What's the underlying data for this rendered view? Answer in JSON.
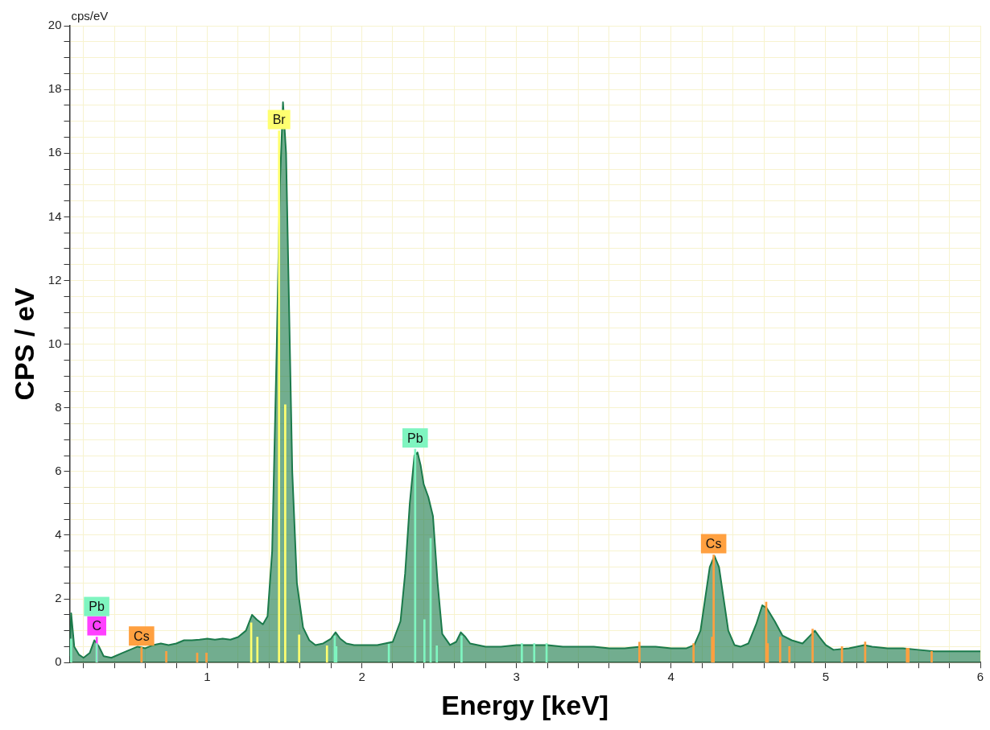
{
  "chart_data": {
    "type": "area",
    "xlabel": "Energy [keV]",
    "ylabel": "CPS / eV",
    "annotations": [
      "cps/eV"
    ],
    "grid": true,
    "xlim": [
      0.11,
      6
    ],
    "xticks": [
      {
        "value": 0.2,
        "label": null
      },
      {
        "value": 0.4,
        "label": null
      },
      {
        "value": 0.6,
        "label": null
      },
      {
        "value": 0.8,
        "label": null
      },
      1,
      {
        "value": 1.2,
        "label": null
      },
      {
        "value": 1.4,
        "label": null
      },
      {
        "value": 1.6,
        "label": null
      },
      {
        "value": 1.8,
        "label": null
      },
      2,
      {
        "value": 2.2,
        "label": null
      },
      {
        "value": 2.4,
        "label": null
      },
      {
        "value": 2.6,
        "label": null
      },
      {
        "value": 2.8,
        "label": null
      },
      3,
      {
        "value": 3.2,
        "label": null
      },
      {
        "value": 3.4,
        "label": null
      },
      {
        "value": 3.6,
        "label": null
      },
      {
        "value": 3.8,
        "label": null
      },
      4,
      {
        "value": 4.2,
        "label": null
      },
      {
        "value": 4.4,
        "label": null
      },
      {
        "value": 4.6,
        "label": null
      },
      {
        "value": 4.8,
        "label": null
      },
      5,
      {
        "value": 5.2,
        "label": null
      },
      {
        "value": 5.4,
        "label": null
      },
      {
        "value": 5.6,
        "label": null
      },
      {
        "value": 5.8,
        "label": null
      },
      6
    ],
    "ylim": [
      0,
      20
    ],
    "yticks": [
      0,
      {
        "value": 0.5,
        "label": null
      },
      {
        "value": 1,
        "label": null
      },
      {
        "value": 1.5,
        "label": null
      },
      2,
      {
        "value": 2.5,
        "label": null
      },
      {
        "value": 3,
        "label": null
      },
      {
        "value": 3.5,
        "label": null
      },
      4,
      {
        "value": 4.5,
        "label": null
      },
      {
        "value": 5,
        "label": null
      },
      {
        "value": 5.5,
        "label": null
      },
      6,
      {
        "value": 6.5,
        "label": null
      },
      {
        "value": 7,
        "label": null
      },
      {
        "value": 7.5,
        "label": null
      },
      8,
      {
        "value": 8.5,
        "label": null
      },
      {
        "value": 9,
        "label": null
      },
      {
        "value": 9.5,
        "label": null
      },
      10,
      {
        "value": 10.5,
        "label": null
      },
      {
        "value": 11,
        "label": null
      },
      {
        "value": 11.5,
        "label": null
      },
      12,
      {
        "value": 12.5,
        "label": null
      },
      {
        "value": 13,
        "label": null
      },
      {
        "value": 13.5,
        "label": null
      },
      14,
      {
        "value": 14.5,
        "label": null
      },
      {
        "value": 15,
        "label": null
      },
      {
        "value": 15.5,
        "label": null
      },
      16,
      {
        "value": 16.5,
        "label": null
      },
      {
        "value": 17,
        "label": null
      },
      {
        "value": 17.5,
        "label": null
      },
      18,
      {
        "value": 18.5,
        "label": null
      },
      {
        "value": 19,
        "label": null
      },
      {
        "value": 19.5,
        "label": null
      },
      20
    ],
    "series": [
      {
        "color": "#1b7a4b",
        "x": [
          0.11,
          0.12,
          0.14,
          0.17,
          0.2,
          0.24,
          0.27,
          0.3,
          0.33,
          0.38,
          0.45,
          0.5,
          0.55,
          0.6,
          0.65,
          0.7,
          0.75,
          0.8,
          0.85,
          0.9,
          0.95,
          1.0,
          1.05,
          1.1,
          1.15,
          1.2,
          1.25,
          1.29,
          1.32,
          1.36,
          1.39,
          1.42,
          1.45,
          1.47,
          1.49,
          1.51,
          1.53,
          1.55,
          1.58,
          1.62,
          1.66,
          1.7,
          1.75,
          1.8,
          1.83,
          1.86,
          1.9,
          1.95,
          2.0,
          2.05,
          2.1,
          2.15,
          2.2,
          2.25,
          2.28,
          2.31,
          2.34,
          2.36,
          2.38,
          2.4,
          2.43,
          2.46,
          2.49,
          2.52,
          2.57,
          2.61,
          2.64,
          2.67,
          2.7,
          2.8,
          2.9,
          3.0,
          3.1,
          3.2,
          3.3,
          3.4,
          3.5,
          3.6,
          3.7,
          3.8,
          3.9,
          4.0,
          4.1,
          4.15,
          4.19,
          4.22,
          4.25,
          4.28,
          4.31,
          4.34,
          4.37,
          4.41,
          4.45,
          4.5,
          4.55,
          4.59,
          4.62,
          4.67,
          4.72,
          4.78,
          4.85,
          4.9,
          4.93,
          4.96,
          5.0,
          5.05,
          5.15,
          5.25,
          5.3,
          5.4,
          5.5,
          5.6,
          5.7,
          5.8,
          5.9,
          6.0
        ],
        "values": [
          0.2,
          1.55,
          0.5,
          0.25,
          0.15,
          0.3,
          0.7,
          0.5,
          0.2,
          0.15,
          0.3,
          0.4,
          0.5,
          0.45,
          0.55,
          0.6,
          0.55,
          0.6,
          0.7,
          0.7,
          0.72,
          0.75,
          0.72,
          0.75,
          0.72,
          0.8,
          1.0,
          1.5,
          1.35,
          1.2,
          1.45,
          3.5,
          10,
          15,
          17.6,
          16,
          11,
          6,
          2.5,
          1.1,
          0.7,
          0.55,
          0.6,
          0.75,
          0.95,
          0.75,
          0.6,
          0.55,
          0.55,
          0.55,
          0.55,
          0.6,
          0.65,
          1.3,
          2.8,
          5,
          6.5,
          6.6,
          6.2,
          5.6,
          5.2,
          4.6,
          2.5,
          0.9,
          0.55,
          0.65,
          0.95,
          0.8,
          0.6,
          0.5,
          0.5,
          0.55,
          0.55,
          0.55,
          0.5,
          0.5,
          0.5,
          0.45,
          0.45,
          0.5,
          0.5,
          0.45,
          0.45,
          0.55,
          1.0,
          2.0,
          3.0,
          3.35,
          3.0,
          2.0,
          1.0,
          0.55,
          0.5,
          0.6,
          1.2,
          1.8,
          1.7,
          1.3,
          0.85,
          0.7,
          0.6,
          0.85,
          1.0,
          0.8,
          0.55,
          0.4,
          0.45,
          0.55,
          0.5,
          0.45,
          0.45,
          0.4,
          0.35,
          0.35,
          0.35,
          0.35
        ]
      },
      {
        "type": "bar",
        "color": "#ffff70",
        "x": [
          1.3,
          1.34,
          1.48,
          1.52,
          1.61,
          1.79
        ],
        "values": [
          1.25,
          0.8,
          16.7,
          8.1,
          0.87,
          0.53
        ],
        "value_labels": [
          null,
          null,
          "Br",
          null,
          null,
          null
        ]
      },
      {
        "type": "bar",
        "color": "#7ff5c0",
        "x": [
          0.125,
          0.29,
          1.83,
          1.84,
          2.18,
          2.35,
          2.41,
          2.45,
          2.49,
          2.65,
          3.04,
          3.12,
          3.2
        ],
        "values": [
          0.74,
          0.6,
          0.84,
          0.5,
          0.58,
          6.7,
          1.35,
          3.9,
          0.53,
          0.84,
          0.6,
          0.6,
          0.6
        ],
        "value_labels": [
          null,
          "Pb",
          null,
          null,
          null,
          "Pb",
          null,
          null,
          null,
          null,
          null,
          null,
          null
        ]
      },
      {
        "type": "bar",
        "color": "#ffa040",
        "x": [
          0.57,
          0.73,
          0.93,
          0.99,
          3.79,
          4.14,
          4.26,
          4.27,
          4.61,
          4.62,
          4.7,
          4.76,
          4.91,
          5.1,
          5.25,
          5.52,
          5.53,
          5.68
        ],
        "values": [
          0.48,
          0.35,
          0.3,
          0.3,
          0.64,
          0.6,
          0.8,
          3.38,
          1.9,
          0.6,
          0.8,
          0.5,
          1.05,
          0.5,
          0.65,
          0.45,
          0.45,
          0.35
        ],
        "value_labels": [
          "Cs",
          null,
          null,
          null,
          null,
          null,
          null,
          "Cs",
          null,
          null,
          null,
          null,
          null,
          null,
          null,
          null,
          null,
          null
        ]
      },
      {
        "type": "bar",
        "color": "#ff40ff",
        "x": [
          0.27
        ],
        "values": [
          0.8
        ],
        "value_labels": [
          "C"
        ]
      }
    ]
  }
}
